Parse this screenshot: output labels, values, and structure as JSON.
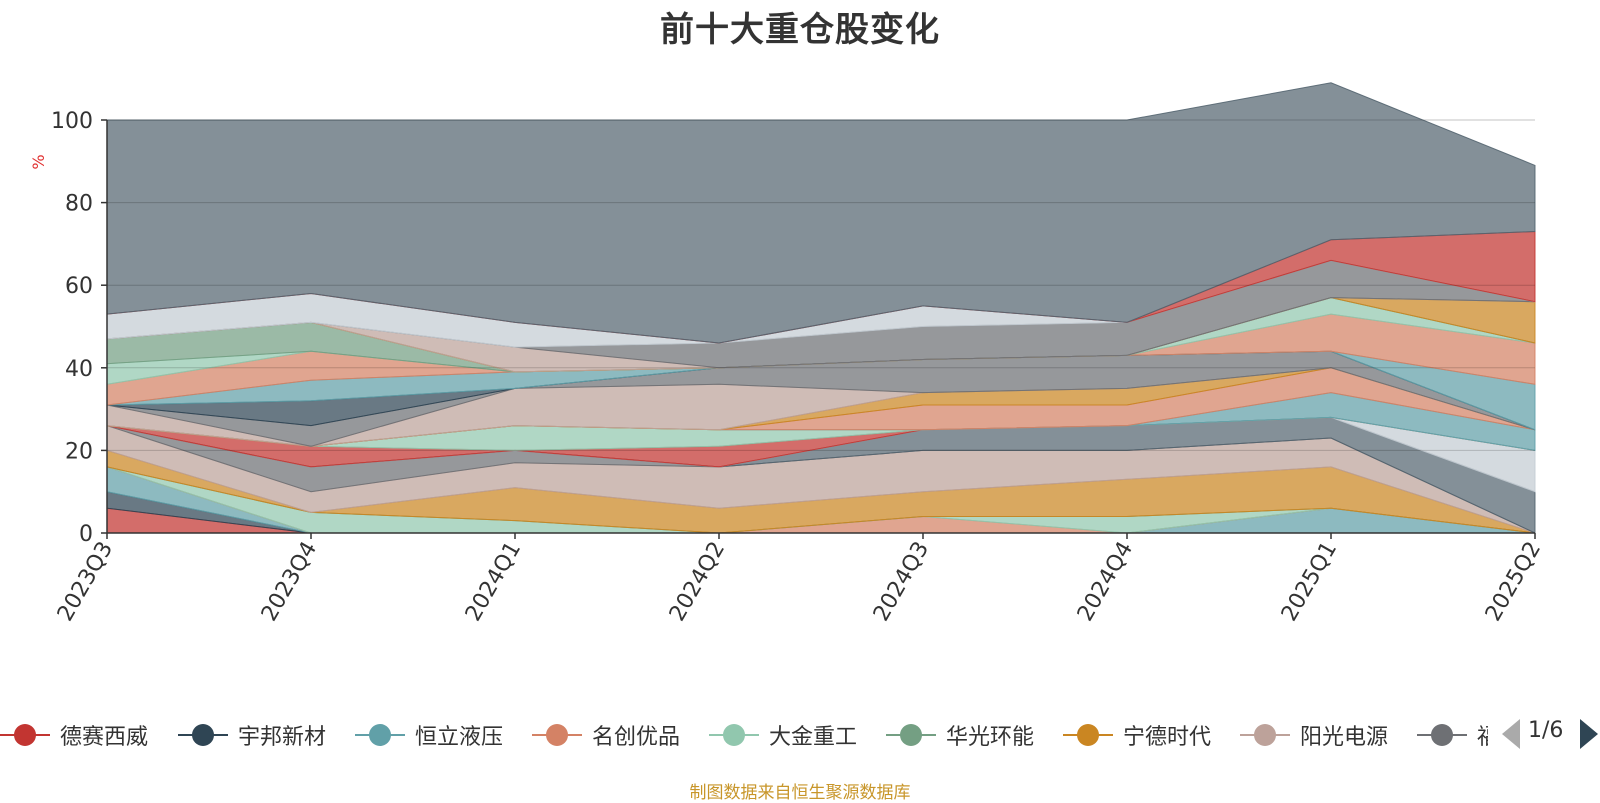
{
  "title": "前十大重仓股变化",
  "source_note": "制图数据来自恒生聚源数据库",
  "pager": {
    "text": "1/6"
  },
  "legend": [
    {
      "name": "德赛西威",
      "color": "#c23531"
    },
    {
      "name": "宇邦新材",
      "color": "#2f4554"
    },
    {
      "name": "恒立液压",
      "color": "#61a0a8"
    },
    {
      "name": "名创优品",
      "color": "#d48265"
    },
    {
      "name": "大金重工",
      "color": "#91c7ae"
    },
    {
      "name": "华光环能",
      "color": "#749f83"
    },
    {
      "name": "宁德时代",
      "color": "#ca8622"
    },
    {
      "name": "阳光电源",
      "color": "#bda29a"
    },
    {
      "name": "福",
      "color": "#6e7074"
    }
  ],
  "chart_data": {
    "type": "area",
    "stacked": true,
    "title": "前十大重仓股变化",
    "ylabel": "%",
    "ylim": [
      0,
      100
    ],
    "y_ticks": [
      0,
      20,
      40,
      60,
      80,
      100
    ],
    "categories": [
      "2023Q3",
      "2023Q4",
      "2024Q1",
      "2024Q2",
      "2024Q3",
      "2024Q4",
      "2025Q1",
      "2025Q2"
    ],
    "grid": true,
    "legend_position": "bottom",
    "series": [
      {
        "name": "德赛西威",
        "color": "#c23531",
        "values": [
          6,
          0,
          0,
          0,
          0,
          0,
          0,
          0
        ]
      },
      {
        "name": "宇邦新材",
        "color": "#2f4554",
        "values": [
          4,
          0,
          0,
          0,
          0,
          0,
          0,
          0
        ]
      },
      {
        "name": "恒立液压",
        "color": "#61a0a8",
        "values": [
          6,
          0,
          0,
          0,
          0,
          0,
          6,
          0
        ]
      },
      {
        "name": "名创优品",
        "color": "#d48265",
        "values": [
          0,
          0,
          0,
          0,
          4,
          0,
          0,
          0
        ]
      },
      {
        "name": "大金重工",
        "color": "#91c7ae",
        "values": [
          0,
          5,
          3,
          0,
          0,
          4,
          0,
          0
        ]
      },
      {
        "name": "华光环能",
        "color": "#749f83",
        "values": [
          0,
          0,
          0,
          0,
          0,
          0,
          0,
          0
        ]
      },
      {
        "name": "宁德时代",
        "color": "#ca8622",
        "values": [
          4,
          0,
          8,
          6,
          6,
          9,
          10,
          0
        ]
      },
      {
        "name": "阳光电源",
        "color": "#bda29a",
        "values": [
          6,
          5,
          6,
          10,
          10,
          7,
          7,
          0
        ]
      },
      {
        "name": "福",
        "color": "#6e7074",
        "values": [
          0,
          6,
          3,
          0,
          0,
          0,
          0,
          0
        ]
      },
      {
        "name": "",
        "color": "#546570",
        "values": [
          0,
          0,
          0,
          0,
          5,
          6,
          5,
          10
        ]
      },
      {
        "name": "",
        "color": "#c4ccd3",
        "values": [
          0,
          0,
          0,
          0,
          0,
          0,
          0,
          10
        ]
      },
      {
        "name": "",
        "color": "#c23531",
        "values": [
          0,
          5,
          0,
          5,
          0,
          0,
          0,
          0
        ]
      },
      {
        "name": "",
        "color": "#91c7ae",
        "values": [
          0,
          0,
          6,
          4,
          0,
          0,
          0,
          0
        ]
      },
      {
        "name": "",
        "color": "#61a0a8",
        "values": [
          0,
          0,
          0,
          0,
          0,
          0,
          6,
          5
        ]
      },
      {
        "name": "",
        "color": "#d48265",
        "values": [
          0,
          0,
          0,
          0,
          6,
          5,
          6,
          0
        ]
      },
      {
        "name": "",
        "color": "#ca8622",
        "values": [
          0,
          0,
          0,
          0,
          3,
          4,
          0,
          0
        ]
      },
      {
        "name": "",
        "color": "#bda29a",
        "values": [
          5,
          0,
          9,
          11,
          0,
          0,
          0,
          0
        ]
      },
      {
        "name": "",
        "color": "#6e7074",
        "values": [
          0,
          5,
          0,
          4,
          8,
          8,
          4,
          0
        ]
      },
      {
        "name": "",
        "color": "#2f4554",
        "values": [
          0,
          6,
          0,
          0,
          0,
          0,
          0,
          0
        ]
      },
      {
        "name": "",
        "color": "#61a0a8",
        "values": [
          0,
          5,
          4,
          0,
          0,
          0,
          0,
          11
        ]
      },
      {
        "name": "",
        "color": "#d48265",
        "values": [
          5,
          7,
          0,
          0,
          0,
          0,
          9,
          10
        ]
      },
      {
        "name": "",
        "color": "#91c7ae",
        "values": [
          5,
          0,
          0,
          0,
          0,
          0,
          4,
          0
        ]
      },
      {
        "name": "",
        "color": "#749f83",
        "values": [
          6,
          7,
          0,
          0,
          0,
          0,
          0,
          0
        ]
      },
      {
        "name": "",
        "color": "#ca8622",
        "values": [
          0,
          0,
          0,
          0,
          0,
          0,
          0,
          10
        ]
      },
      {
        "name": "",
        "color": "#bda29a",
        "values": [
          0,
          0,
          6,
          0,
          0,
          0,
          0,
          0
        ]
      },
      {
        "name": "",
        "color": "#6e7074",
        "values": [
          0,
          0,
          0,
          6,
          8,
          8,
          9,
          0
        ]
      },
      {
        "name": "",
        "color": "#c4ccd3",
        "values": [
          6,
          7,
          6,
          0,
          5,
          0,
          0,
          0
        ]
      },
      {
        "name": "",
        "color": "#c23531",
        "values": [
          0,
          0,
          0,
          0,
          0,
          0,
          5,
          17
        ]
      },
      {
        "name": "",
        "color": "#546570",
        "values": [
          47,
          42,
          49,
          54,
          45,
          49,
          38,
          16
        ]
      }
    ]
  }
}
